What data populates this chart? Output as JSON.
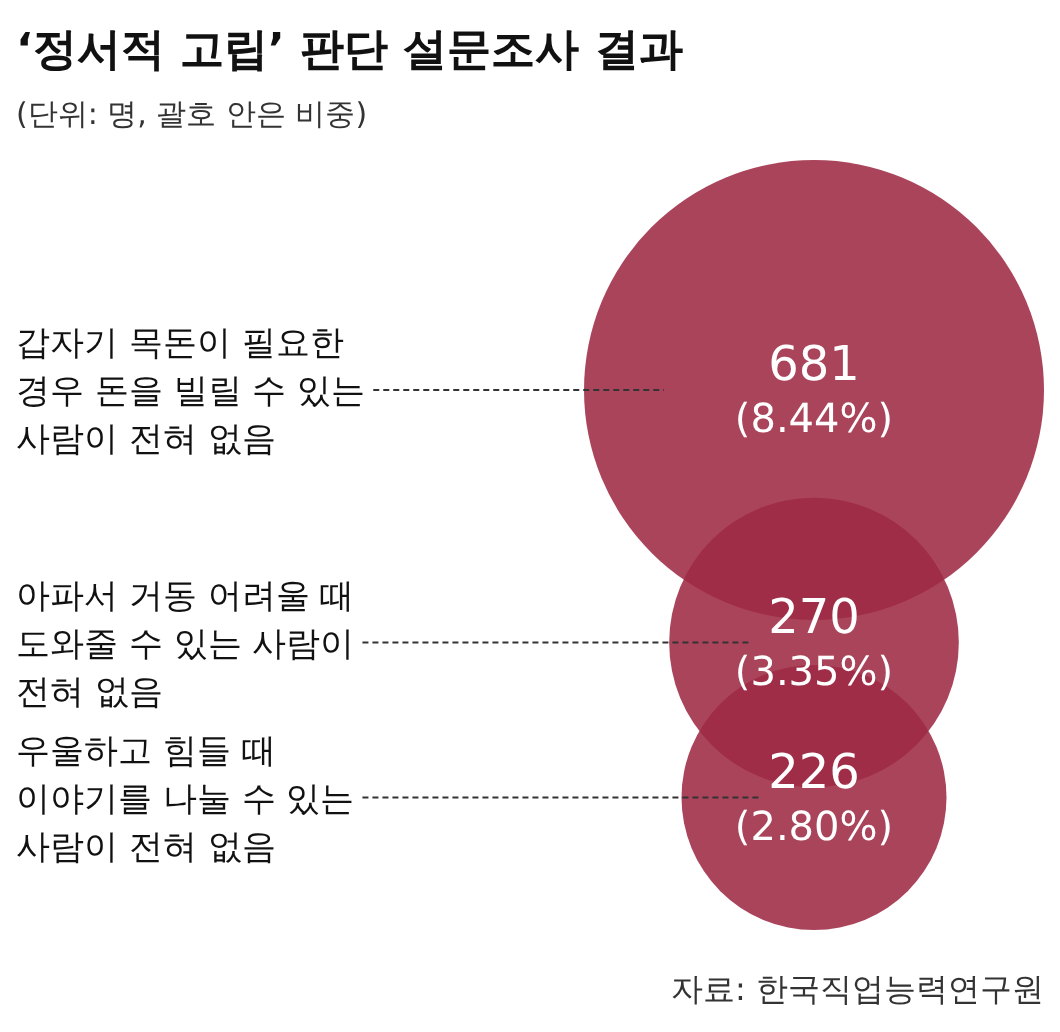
{
  "chart_data": {
    "type": "other",
    "title": "‘정서적 고립’ 판단 설문조사 결과",
    "subtitle": "(단위: 명, 괄호 안은 비중)",
    "categories": [
      "갑자기 목돈이 필요한\n경우 돈을 빌릴 수 있는\n사람이 전혀 없음",
      "아파서 거동 어려울 때\n도와줄 수 있는 사람이\n전혀 없음",
      "우울하고 힘들 때\n이야기를 나눌 수 있는\n사람이 전혀 없음"
    ],
    "values": [
      681,
      270,
      226
    ],
    "value_labels": [
      "681\n(8.44%)",
      "270\n(3.35%)",
      "226\n(2.80%)"
    ],
    "color": "#9e2a44",
    "annotations": [
      "자료: 한국직업능력연구원"
    ]
  }
}
